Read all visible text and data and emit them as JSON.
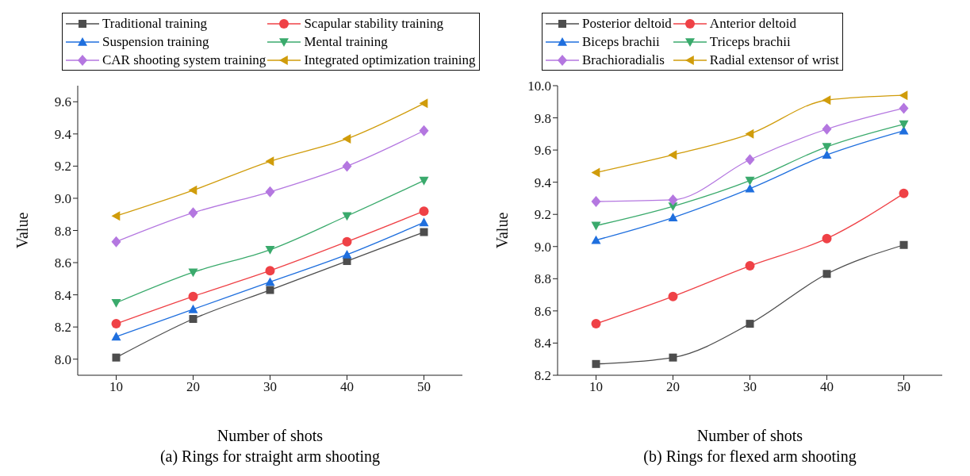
{
  "chart_data": [
    {
      "type": "line",
      "title": "(a) Rings for straight arm shooting",
      "xlabel": "Number of shots",
      "ylabel": "Value",
      "x": [
        10,
        20,
        30,
        40,
        50
      ],
      "xlim": [
        5,
        55
      ],
      "xticks": [
        10,
        20,
        30,
        40,
        50
      ],
      "ylim": [
        7.9,
        9.7
      ],
      "yticks": [
        {
          "value": 8,
          "label": "8.0"
        },
        {
          "value": 8.2,
          "label": "8.2"
        },
        {
          "value": 8.4,
          "label": "8.4"
        },
        {
          "value": 8.6,
          "label": "8.6"
        },
        {
          "value": 8.8,
          "label": "8.8"
        },
        {
          "value": 9,
          "label": "9.0"
        },
        {
          "value": 9.2,
          "label": "9.2"
        },
        {
          "value": 9.4,
          "label": "9.4"
        },
        {
          "value": 9.6,
          "label": "9.6"
        }
      ],
      "grid": false,
      "legend": "top",
      "line_style": "solid",
      "series": [
        {
          "name": "Traditional training",
          "color": "#4d4d4d",
          "marker": "square",
          "values": [
            8.01,
            8.25,
            8.43,
            8.61,
            8.79
          ]
        },
        {
          "name": "Scapular stability training",
          "color": "#ef4146",
          "marker": "circle",
          "values": [
            8.22,
            8.39,
            8.55,
            8.73,
            8.92
          ]
        },
        {
          "name": "Suspension training",
          "color": "#1f6fde",
          "marker": "triangle",
          "values": [
            8.14,
            8.31,
            8.48,
            8.65,
            8.85
          ]
        },
        {
          "name": "Mental training",
          "color": "#3aaa6c",
          "marker": "triangle-down",
          "values": [
            8.35,
            8.54,
            8.68,
            8.89,
            9.11
          ]
        },
        {
          "name": "CAR shooting system training",
          "color": "#b477e0",
          "marker": "diamond",
          "values": [
            8.73,
            8.91,
            9.04,
            9.2,
            9.42
          ]
        },
        {
          "name": "Integrated optimization training",
          "color": "#d09c0b",
          "marker": "triangle-left",
          "values": [
            8.89,
            9.05,
            9.23,
            9.37,
            9.59
          ]
        }
      ]
    },
    {
      "type": "line",
      "title": "(b) Rings for flexed arm shooting",
      "xlabel": "Number of shots",
      "ylabel": "Value",
      "x": [
        10,
        20,
        30,
        40,
        50
      ],
      "xlim": [
        5,
        55
      ],
      "xticks": [
        10,
        20,
        30,
        40,
        50
      ],
      "ylim": [
        8.2,
        10
      ],
      "yticks": [
        {
          "value": 8.2,
          "label": "8.2"
        },
        {
          "value": 8.4,
          "label": "8.4"
        },
        {
          "value": 8.6,
          "label": "8.6"
        },
        {
          "value": 8.8,
          "label": "8.8"
        },
        {
          "value": 9,
          "label": "9.0"
        },
        {
          "value": 9.2,
          "label": "9.2"
        },
        {
          "value": 9.4,
          "label": "9.4"
        },
        {
          "value": 9.6,
          "label": "9.6"
        },
        {
          "value": 9.8,
          "label": "9.8"
        },
        {
          "value": 10,
          "label": "10.0"
        }
      ],
      "grid": false,
      "legend": "top",
      "line_style": "solid",
      "series": [
        {
          "name": "Posterior deltoid",
          "color": "#4d4d4d",
          "marker": "square",
          "values": [
            8.27,
            8.31,
            8.52,
            8.83,
            9.01
          ]
        },
        {
          "name": "Anterior deltoid",
          "color": "#ef4146",
          "marker": "circle",
          "values": [
            8.52,
            8.69,
            8.88,
            9.05,
            9.33
          ]
        },
        {
          "name": "Biceps brachii",
          "color": "#1f6fde",
          "marker": "triangle",
          "values": [
            9.04,
            9.18,
            9.36,
            9.57,
            9.72
          ]
        },
        {
          "name": "Triceps brachii",
          "color": "#3aaa6c",
          "marker": "triangle-down",
          "values": [
            9.13,
            9.25,
            9.41,
            9.62,
            9.76
          ]
        },
        {
          "name": "Brachioradialis",
          "color": "#b477e0",
          "marker": "diamond",
          "values": [
            9.28,
            9.29,
            9.54,
            9.73,
            9.86
          ]
        },
        {
          "name": "Radial extensor of wrist",
          "color": "#d09c0b",
          "marker": "triangle-left",
          "values": [
            9.46,
            9.57,
            9.7,
            9.91,
            9.94
          ]
        }
      ]
    }
  ]
}
